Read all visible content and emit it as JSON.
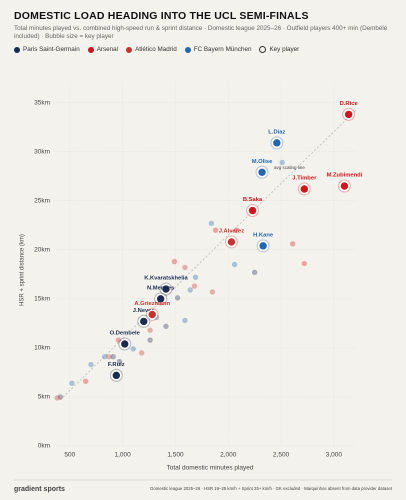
{
  "chart_data": {
    "type": "scatter",
    "title": "DOMESTIC LOAD HEADING INTO THE UCL SEMI-FINALS",
    "subtitle": "Total minutes played vs. combined high-speed run & sprint distance · Domestic league 2025–26 · Outfield players 400+ min (Dembélé included) · Bubble size = key player",
    "x_label": "Total domestic minutes played",
    "y_label": "HSR + sprint distance (km)",
    "key_player_legend": "Key player",
    "annotation": "avg scaling line",
    "brand": "gradient sports",
    "footnote": "Domestic league 2025–26 · HSR 19–25 km/h + Sprint 25+ km/h · GK excluded · Marquinhos absent from data provider dataset",
    "xlim": [
      350,
      3200
    ],
    "ylim": [
      0,
      37
    ],
    "xticks": [
      500,
      {
        "value": 1000,
        "label": "1,000"
      },
      {
        "value": 1500,
        "label": "1,500"
      },
      {
        "value": 2000,
        "label": "2,000"
      },
      {
        "value": 2500,
        "label": "2,500"
      },
      {
        "value": 3000,
        "label": "3,000"
      }
    ],
    "yticks": [
      {
        "value": 0,
        "label": "0km"
      },
      {
        "value": 5,
        "label": "5km"
      },
      {
        "value": 10,
        "label": "10km"
      },
      {
        "value": 15,
        "label": "15km"
      },
      {
        "value": 20,
        "label": "20km"
      },
      {
        "value": 25,
        "label": "25km"
      },
      {
        "value": 30,
        "label": "30km"
      },
      {
        "value": 35,
        "label": "35km"
      }
    ],
    "grid": true,
    "series": [
      {
        "name": "Paris Saint-Germain",
        "color": "#1b2b52",
        "x": [
          1410,
          1360,
          1200,
          1020,
          940,
          410,
          910,
          970,
          1260,
          1410,
          1520,
          2250
        ],
        "values": [
          16.0,
          15.0,
          12.7,
          10.4,
          7.2,
          5.0,
          9.1,
          8.6,
          10.8,
          12.2,
          15.1,
          17.7
        ],
        "labels": [
          "K.Kvaratskhelia",
          "N.Mendes",
          "J.Neves",
          "O.Dembele",
          "F.Ruiz",
          null,
          null,
          null,
          null,
          null,
          null,
          null
        ]
      },
      {
        "name": "Arsenal",
        "color": "#d3141c",
        "x": [
          3140,
          2720,
          3100,
          2230,
          650,
          960,
          1490,
          1880,
          2610,
          2720,
          2080
        ],
        "values": [
          33.8,
          26.2,
          26.5,
          24.0,
          6.6,
          10.8,
          18.8,
          22.0,
          20.6,
          18.6,
          22.0
        ],
        "labels": [
          "D.Rice",
          "J.Timber",
          "M.Zubimendi",
          "B.Saka",
          null,
          null,
          null,
          null,
          null,
          null,
          null
        ]
      },
      {
        "name": "Atlético Madrid",
        "color": "#c8342b",
        "x": [
          2030,
          1280,
          380,
          870,
          1180,
          1260,
          1590,
          1680,
          1850
        ],
        "values": [
          20.8,
          13.4,
          4.9,
          9.1,
          9.5,
          11.8,
          18.2,
          16.3,
          15.7
        ],
        "labels": [
          "J.Alvarez",
          "A.Griezmann",
          null,
          null,
          null,
          null,
          null,
          null,
          null
        ]
      },
      {
        "name": "FC Bayern München",
        "color": "#1f66b3",
        "x": [
          2460,
          2320,
          2330,
          520,
          700,
          830,
          1100,
          1320,
          1590,
          1690,
          1840,
          2060,
          2510,
          1640
        ],
        "values": [
          30.9,
          27.9,
          20.4,
          6.4,
          8.3,
          9.1,
          9.9,
          13.1,
          12.8,
          17.2,
          22.7,
          18.5,
          28.9,
          15.9
        ],
        "labels": [
          "L.Diaz",
          "M.Olise",
          "H.Kane",
          null,
          null,
          null,
          null,
          null,
          null,
          null,
          null,
          null,
          null,
          null
        ]
      }
    ]
  }
}
